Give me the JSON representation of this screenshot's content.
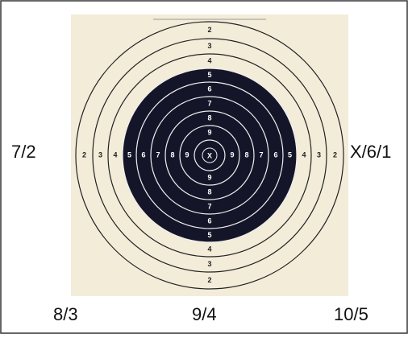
{
  "labels": {
    "left": "7/2",
    "right": "X/6/1",
    "bottom_left": "8/3",
    "bottom_center": "9/4",
    "bottom_right": "10/5"
  },
  "target": {
    "ring_numbers": [
      "2",
      "3",
      "4",
      "5",
      "6",
      "7",
      "8",
      "9"
    ],
    "center": "X"
  }
}
